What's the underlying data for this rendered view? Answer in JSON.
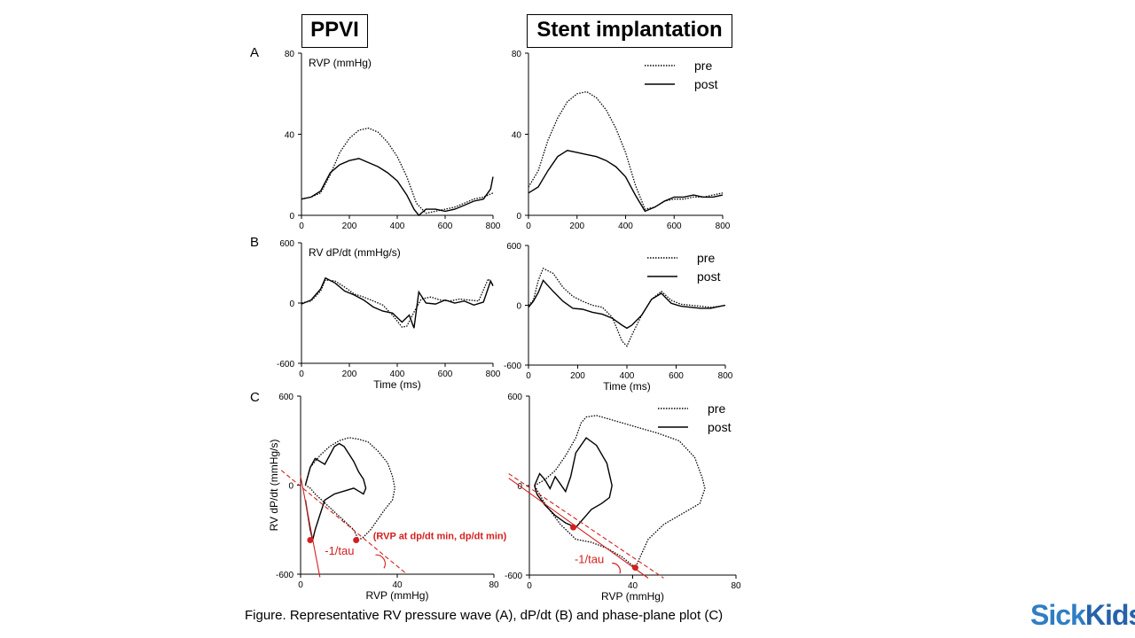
{
  "headers": {
    "left": "PPVI",
    "right": "Stent implantation"
  },
  "panel_labels": {
    "a": "A",
    "b": "B",
    "c": "C"
  },
  "caption": "Figure. Representative RV pressure wave (A), dP/dt (B) and phase-plane plot (C)",
  "logo": {
    "part1": "Sick",
    "part2": "Kids"
  },
  "colors": {
    "red": "#d42020",
    "line": "#000000"
  },
  "chart_data": [
    {
      "id": "A-PPVI",
      "type": "line",
      "ylabel": "RVP (mmHg)",
      "xlabel": "",
      "xlim": [
        0,
        800
      ],
      "ylim": [
        0,
        80
      ],
      "xticks": [
        0,
        200,
        400,
        600,
        800
      ],
      "yticks": [
        0,
        40,
        80
      ],
      "legend": null,
      "series": [
        {
          "name": "pre",
          "style": "dotted",
          "x": [
            0,
            40,
            80,
            120,
            160,
            200,
            240,
            280,
            320,
            360,
            400,
            440,
            480,
            520,
            560,
            600,
            640,
            680,
            720,
            760,
            800
          ],
          "y": [
            8,
            9,
            11,
            20,
            31,
            38,
            42,
            43,
            41,
            36,
            29,
            19,
            6,
            1,
            2,
            3,
            4,
            6,
            8,
            9,
            11
          ]
        },
        {
          "name": "post",
          "style": "solid",
          "x": [
            0,
            40,
            80,
            120,
            160,
            200,
            240,
            280,
            320,
            360,
            400,
            440,
            470,
            490,
            520,
            560,
            600,
            640,
            680,
            720,
            760,
            790,
            800
          ],
          "y": [
            8,
            9,
            12,
            21,
            25,
            27,
            28,
            26,
            24,
            21,
            17,
            10,
            3,
            0,
            3,
            3,
            2,
            3,
            5,
            7,
            8,
            13,
            19
          ]
        }
      ]
    },
    {
      "id": "A-Stent",
      "type": "line",
      "ylabel": "",
      "xlabel": "",
      "xlim": [
        0,
        800
      ],
      "ylim": [
        0,
        80
      ],
      "xticks": [
        0,
        200,
        400,
        600,
        800
      ],
      "yticks": [
        0,
        40,
        80
      ],
      "legend": [
        "pre",
        "post"
      ],
      "series": [
        {
          "name": "pre",
          "style": "dotted",
          "x": [
            0,
            40,
            80,
            120,
            160,
            200,
            240,
            280,
            320,
            360,
            400,
            440,
            480,
            520,
            560,
            600,
            640,
            680,
            720,
            760,
            800
          ],
          "y": [
            14,
            22,
            37,
            48,
            56,
            60,
            61,
            58,
            52,
            43,
            31,
            15,
            3,
            4,
            7,
            8,
            8,
            9,
            9,
            10,
            11
          ]
        },
        {
          "name": "post",
          "style": "solid",
          "x": [
            0,
            40,
            80,
            120,
            160,
            200,
            240,
            280,
            320,
            360,
            400,
            440,
            480,
            520,
            560,
            600,
            640,
            680,
            720,
            760,
            800
          ],
          "y": [
            11,
            14,
            22,
            29,
            32,
            31,
            30,
            29,
            27,
            24,
            19,
            10,
            2,
            4,
            7,
            9,
            9,
            10,
            9,
            9,
            10
          ]
        }
      ]
    },
    {
      "id": "B-PPVI",
      "type": "line",
      "ylabel": "RV dP/dt (mmHg/s)",
      "xlabel": "Time (ms)",
      "xlim": [
        0,
        800
      ],
      "ylim": [
        -600,
        600
      ],
      "xticks": [
        0,
        200,
        400,
        600,
        800
      ],
      "yticks": [
        -600,
        0,
        600
      ],
      "legend": null,
      "series": [
        {
          "name": "pre",
          "style": "dotted",
          "x": [
            0,
            40,
            80,
            100,
            140,
            180,
            220,
            260,
            300,
            340,
            380,
            420,
            440,
            470,
            500,
            540,
            580,
            620,
            660,
            700,
            740,
            780,
            800
          ],
          "y": [
            0,
            20,
            120,
            230,
            220,
            160,
            90,
            60,
            20,
            -20,
            -120,
            -240,
            -230,
            -90,
            40,
            60,
            30,
            20,
            40,
            30,
            20,
            240,
            180
          ]
        },
        {
          "name": "post",
          "style": "solid",
          "x": [
            0,
            40,
            80,
            100,
            140,
            180,
            220,
            260,
            300,
            340,
            380,
            420,
            450,
            470,
            490,
            520,
            560,
            600,
            640,
            680,
            720,
            760,
            790,
            800
          ],
          "y": [
            -10,
            30,
            140,
            250,
            200,
            120,
            80,
            30,
            -40,
            -80,
            -100,
            -190,
            -120,
            -250,
            110,
            0,
            -10,
            30,
            0,
            20,
            -20,
            10,
            220,
            170
          ]
        }
      ]
    },
    {
      "id": "B-Stent",
      "type": "line",
      "ylabel": "",
      "xlabel": "Time (ms)",
      "xlim": [
        0,
        800
      ],
      "ylim": [
        -600,
        600
      ],
      "xticks": [
        0,
        200,
        400,
        600,
        800
      ],
      "yticks": [
        -600,
        0,
        600
      ],
      "legend": [
        "pre",
        "post"
      ],
      "series": [
        {
          "name": "pre",
          "style": "dotted",
          "x": [
            0,
            20,
            40,
            60,
            100,
            140,
            180,
            220,
            260,
            300,
            340,
            380,
            400,
            420,
            460,
            500,
            540,
            580,
            620,
            660,
            700,
            740,
            780,
            800
          ],
          "y": [
            0,
            50,
            250,
            370,
            320,
            180,
            90,
            40,
            0,
            -20,
            -120,
            -360,
            -410,
            -300,
            -100,
            60,
            140,
            50,
            10,
            0,
            -10,
            -20,
            -10,
            0
          ]
        },
        {
          "name": "post",
          "style": "solid",
          "x": [
            0,
            20,
            40,
            60,
            100,
            140,
            180,
            220,
            260,
            300,
            340,
            380,
            400,
            420,
            460,
            500,
            540,
            580,
            620,
            660,
            700,
            740,
            780,
            800
          ],
          "y": [
            -20,
            40,
            130,
            250,
            140,
            40,
            -30,
            -40,
            -70,
            -90,
            -130,
            -200,
            -230,
            -200,
            -100,
            60,
            120,
            20,
            -10,
            -20,
            -30,
            -30,
            -10,
            0
          ]
        }
      ]
    },
    {
      "id": "C-PPVI",
      "type": "scatter",
      "ylabel": "RV dP/dt (mmHg/s)",
      "xlabel": "RVP (mmHg)",
      "xlim": [
        0,
        80
      ],
      "ylim": [
        -600,
        600
      ],
      "xticks": [
        0,
        40,
        80
      ],
      "yticks": [
        -600,
        0,
        600
      ],
      "legend": null,
      "annotation": "(RVP at dp/dt min, dp/dt min)",
      "angle_label": "-1/tau",
      "points": [
        {
          "x": 4,
          "y": -370
        },
        {
          "x": 23,
          "y": -370
        }
      ],
      "series": [
        {
          "name": "pre",
          "style": "dotted",
          "x": [
            2,
            4,
            8,
            12,
            16,
            20,
            24,
            28,
            32,
            36,
            38,
            39,
            38,
            35,
            32,
            29,
            26,
            24,
            22,
            18,
            14,
            10,
            6,
            4,
            2
          ],
          "y": [
            0,
            120,
            200,
            260,
            300,
            320,
            310,
            290,
            230,
            150,
            60,
            -20,
            -100,
            -160,
            -230,
            -300,
            -350,
            -370,
            -300,
            -240,
            -180,
            -120,
            -60,
            -20,
            0
          ]
        },
        {
          "name": "post",
          "style": "solid",
          "x": [
            2,
            4,
            6,
            8,
            10,
            12,
            14,
            16,
            18,
            20,
            22,
            24,
            26,
            27,
            26,
            24,
            22,
            18,
            14,
            10,
            8,
            6,
            5,
            4,
            2
          ],
          "y": [
            0,
            120,
            180,
            160,
            140,
            200,
            260,
            280,
            260,
            210,
            160,
            90,
            40,
            -20,
            -60,
            -40,
            -20,
            -40,
            -60,
            -100,
            -200,
            -300,
            -370,
            -300,
            -100
          ]
        }
      ]
    },
    {
      "id": "C-Stent",
      "type": "scatter",
      "ylabel": "",
      "xlabel": "RVP (mmHg)",
      "xlim": [
        0,
        80
      ],
      "ylim": [
        -600,
        600
      ],
      "xticks": [
        0,
        40,
        80
      ],
      "yticks": [
        -600,
        0,
        600
      ],
      "legend": [
        "pre",
        "post"
      ],
      "angle_label": "-1/tau",
      "points": [
        {
          "x": 17,
          "y": -280
        },
        {
          "x": 41,
          "y": -550
        }
      ],
      "series": [
        {
          "name": "pre",
          "style": "dotted",
          "x": [
            2,
            6,
            10,
            14,
            18,
            20,
            22,
            26,
            32,
            40,
            50,
            58,
            64,
            67,
            68,
            66,
            60,
            52,
            46,
            41,
            36,
            30,
            24,
            18,
            12,
            6,
            2
          ],
          "y": [
            0,
            40,
            100,
            200,
            320,
            420,
            460,
            470,
            440,
            400,
            350,
            300,
            190,
            50,
            -20,
            -120,
            -180,
            -260,
            -360,
            -550,
            -480,
            -420,
            -380,
            -360,
            -260,
            -120,
            0
          ]
        },
        {
          "name": "post",
          "style": "solid",
          "x": [
            2,
            4,
            6,
            8,
            10,
            12,
            14,
            16,
            18,
            22,
            26,
            30,
            32,
            31,
            28,
            24,
            22,
            18,
            14,
            10,
            6,
            3,
            2
          ],
          "y": [
            0,
            80,
            40,
            -20,
            60,
            10,
            -40,
            60,
            220,
            320,
            270,
            150,
            0,
            -80,
            -120,
            -160,
            -200,
            -280,
            -250,
            -200,
            -130,
            -60,
            0
          ]
        }
      ]
    }
  ]
}
